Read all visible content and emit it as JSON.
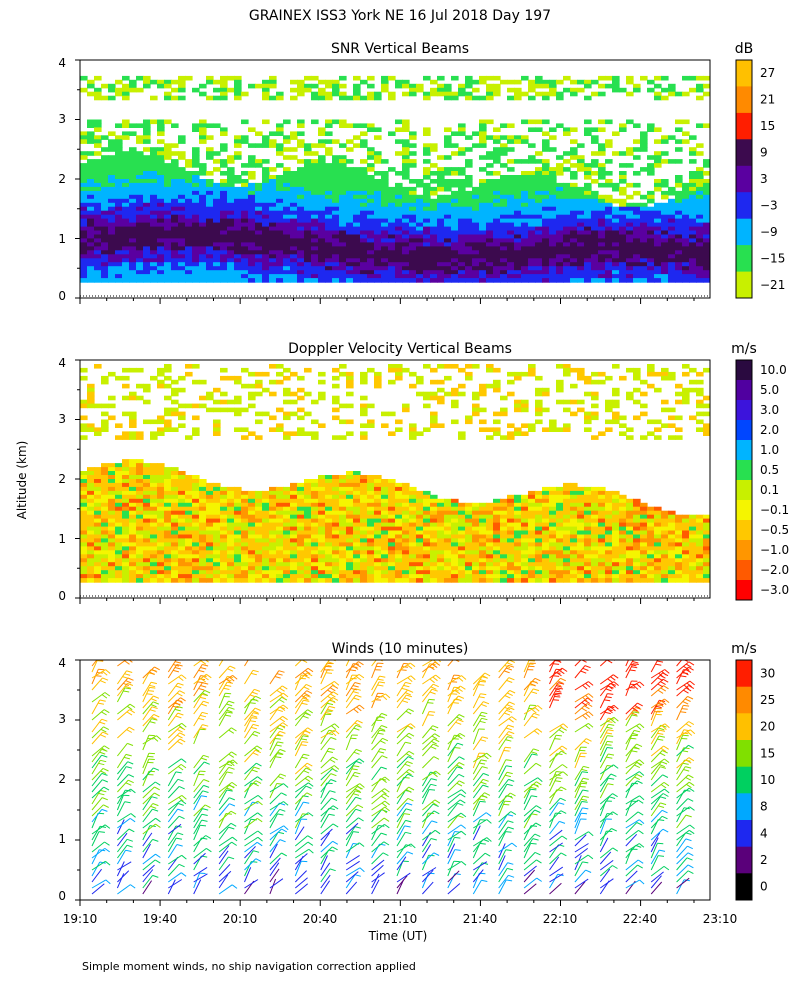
{
  "figure": {
    "title": "GRAINEX ISS3 York NE  16 Jul 2018 Day 197",
    "ylabel": "Altitude (km)",
    "xlabel": "Time (UT)",
    "footnote": "Simple moment winds, no ship navigation correction applied"
  },
  "chart_data": [
    {
      "type": "heatmap",
      "title": "SNR Vertical Beams",
      "colorbar_unit": "dB",
      "colorbar_labels": [
        "27",
        "21",
        "15",
        "9",
        "3",
        "−3",
        "−9",
        "−15",
        "−21"
      ],
      "colors": [
        "#ffc000",
        "#ff8a00",
        "#ff1e00",
        "#3c0a4e",
        "#5a00a0",
        "#1e28f0",
        "#00b4ff",
        "#28e050",
        "#c8f000"
      ],
      "xlim": [
        "19:10",
        "23:10"
      ],
      "ylim": [
        0,
        4
      ],
      "yticks": [
        "0",
        "1",
        "2",
        "3",
        "4"
      ],
      "grid": false
    },
    {
      "type": "heatmap",
      "title": "Doppler Velocity Vertical Beams",
      "colorbar_unit": "m/s",
      "colorbar_labels": [
        "10.0",
        "5.0",
        "3.0",
        "2.0",
        "1.0",
        "0.5",
        "0.1",
        "−0.1",
        "−0.5",
        "−1.0",
        "−2.0",
        "−3.0"
      ],
      "colors": [
        "#2a0a40",
        "#5000a0",
        "#3c14dc",
        "#0046ff",
        "#00b4ff",
        "#28e050",
        "#c8f000",
        "#f5f500",
        "#ffc800",
        "#ff9600",
        "#ff5a00",
        "#ff0000"
      ],
      "xlim": [
        "19:10",
        "23:10"
      ],
      "ylim": [
        0,
        4
      ],
      "yticks": [
        "0",
        "1",
        "2",
        "3",
        "4"
      ],
      "grid": false
    },
    {
      "type": "scatter",
      "title": "Winds (10 minutes)",
      "colorbar_unit": "m/s",
      "colorbar_labels": [
        "30",
        "25",
        "20",
        "15",
        "10",
        "8",
        "4",
        "2",
        "0"
      ],
      "colors": [
        "#ff1e00",
        "#ff8a00",
        "#ffc000",
        "#80e000",
        "#00d060",
        "#00a8ff",
        "#1e28f0",
        "#5a007a",
        "#000000"
      ],
      "xticks": [
        "19:10",
        "19:40",
        "20:10",
        "20:40",
        "21:10",
        "21:40",
        "22:10",
        "22:40",
        "23:10"
      ],
      "ylim": [
        0,
        4
      ],
      "yticks": [
        "0",
        "1",
        "2",
        "3",
        "4"
      ],
      "grid": false
    }
  ]
}
